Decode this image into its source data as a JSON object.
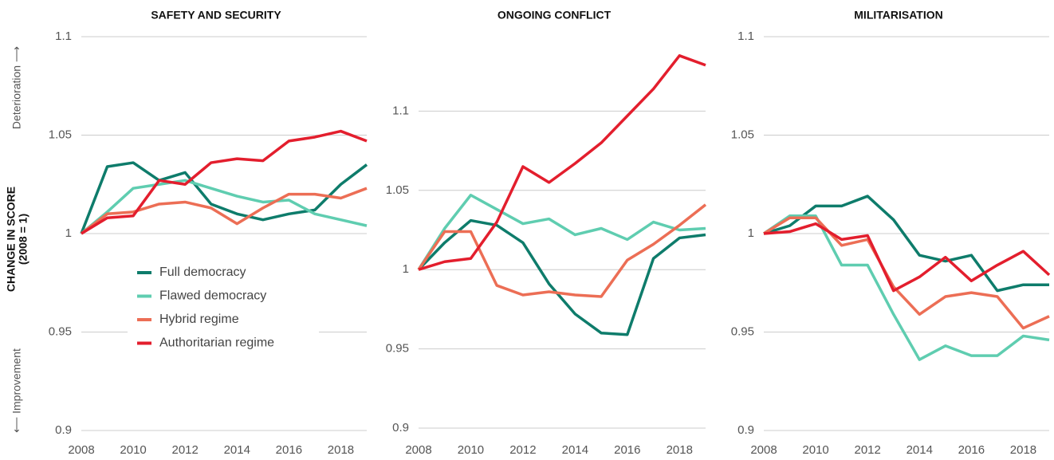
{
  "y_axis_label": "CHANGE IN SCORE",
  "y_axis_sublabel": "(2008 = 1)",
  "top_note": "Deterioration ⟶",
  "bottom_note": "⟵ Improvement",
  "chart_data": [
    {
      "type": "line",
      "title": "SAFETY AND SECURITY",
      "legend": "lower-left",
      "x": [
        2008,
        2009,
        2010,
        2011,
        2012,
        2013,
        2014,
        2015,
        2016,
        2017,
        2018,
        2019
      ],
      "xlim": [
        2008,
        2019
      ],
      "xticks": [
        2008,
        2010,
        2012,
        2014,
        2016,
        2018
      ],
      "ylim": [
        0.9,
        1.1
      ],
      "yticks": [
        0.9,
        0.95,
        1,
        1.05,
        1.1
      ],
      "grid": true,
      "series": [
        {
          "name": "Full democracy",
          "color": "#0e7c6b",
          "values": [
            1.0,
            1.034,
            1.036,
            1.027,
            1.031,
            1.015,
            1.01,
            1.007,
            1.01,
            1.012,
            1.025,
            1.035
          ]
        },
        {
          "name": "Flawed democracy",
          "color": "#5fcdb0",
          "values": [
            1.0,
            1.011,
            1.023,
            1.025,
            1.027,
            1.023,
            1.019,
            1.016,
            1.017,
            1.01,
            1.007,
            1.004
          ]
        },
        {
          "name": "Hybrid regime",
          "color": "#ec6e55",
          "values": [
            1.0,
            1.01,
            1.011,
            1.015,
            1.016,
            1.013,
            1.005,
            1.013,
            1.02,
            1.02,
            1.018,
            1.023
          ]
        },
        {
          "name": "Authoritarian regime",
          "color": "#e31e2d",
          "values": [
            1.0,
            1.008,
            1.009,
            1.027,
            1.025,
            1.036,
            1.038,
            1.037,
            1.047,
            1.049,
            1.052,
            1.047
          ]
        }
      ]
    },
    {
      "type": "line",
      "title": "ONGOING CONFLICT",
      "x": [
        2008,
        2009,
        2010,
        2011,
        2012,
        2013,
        2014,
        2015,
        2016,
        2017,
        2018,
        2019
      ],
      "xlim": [
        2008,
        2019
      ],
      "xticks": [
        2008,
        2010,
        2012,
        2014,
        2016,
        2018
      ],
      "ylim": [
        0.9,
        1.15
      ],
      "yticks": [
        0.9,
        0.95,
        1,
        1.05,
        1.1
      ],
      "grid": true,
      "series": [
        {
          "color": "#0e7c6b",
          "values": [
            1.0,
            1.017,
            1.031,
            1.028,
            1.017,
            0.991,
            0.972,
            0.96,
            0.959,
            1.007,
            1.02,
            1.022
          ]
        },
        {
          "color": "#5fcdb0",
          "values": [
            1.0,
            1.026,
            1.047,
            1.038,
            1.029,
            1.032,
            1.022,
            1.026,
            1.019,
            1.03,
            1.025,
            1.026
          ]
        },
        {
          "color": "#ec6e55",
          "values": [
            1.0,
            1.024,
            1.024,
            0.99,
            0.984,
            0.986,
            0.984,
            0.983,
            1.006,
            1.016,
            1.028,
            1.041
          ]
        },
        {
          "color": "#e31e2d",
          "values": [
            1.0,
            1.005,
            1.007,
            1.03,
            1.065,
            1.055,
            1.067,
            1.08,
            1.097,
            1.114,
            1.135,
            1.129
          ]
        }
      ]
    },
    {
      "type": "line",
      "title": "MILITARISATION",
      "x": [
        2008,
        2009,
        2010,
        2011,
        2012,
        2013,
        2014,
        2015,
        2016,
        2017,
        2018,
        2019
      ],
      "xlim": [
        2008,
        2019
      ],
      "xticks": [
        2008,
        2010,
        2012,
        2014,
        2016,
        2018
      ],
      "ylim": [
        0.9,
        1.1
      ],
      "yticks": [
        0.9,
        0.95,
        1,
        1.05,
        1.1
      ],
      "grid": true,
      "series": [
        {
          "color": "#0e7c6b",
          "values": [
            1.0,
            1.004,
            1.014,
            1.014,
            1.019,
            1.007,
            0.989,
            0.986,
            0.989,
            0.971,
            0.974,
            0.974
          ]
        },
        {
          "color": "#5fcdb0",
          "values": [
            1.0,
            1.009,
            1.009,
            0.984,
            0.984,
            0.959,
            0.936,
            0.943,
            0.938,
            0.938,
            0.948,
            0.946
          ]
        },
        {
          "color": "#ec6e55",
          "values": [
            1.0,
            1.008,
            1.008,
            0.994,
            0.997,
            0.973,
            0.959,
            0.968,
            0.97,
            0.968,
            0.952,
            0.958
          ]
        },
        {
          "color": "#e31e2d",
          "values": [
            1.0,
            1.001,
            1.005,
            0.997,
            0.999,
            0.971,
            0.978,
            0.988,
            0.976,
            0.984,
            0.991,
            0.979
          ]
        }
      ]
    }
  ]
}
